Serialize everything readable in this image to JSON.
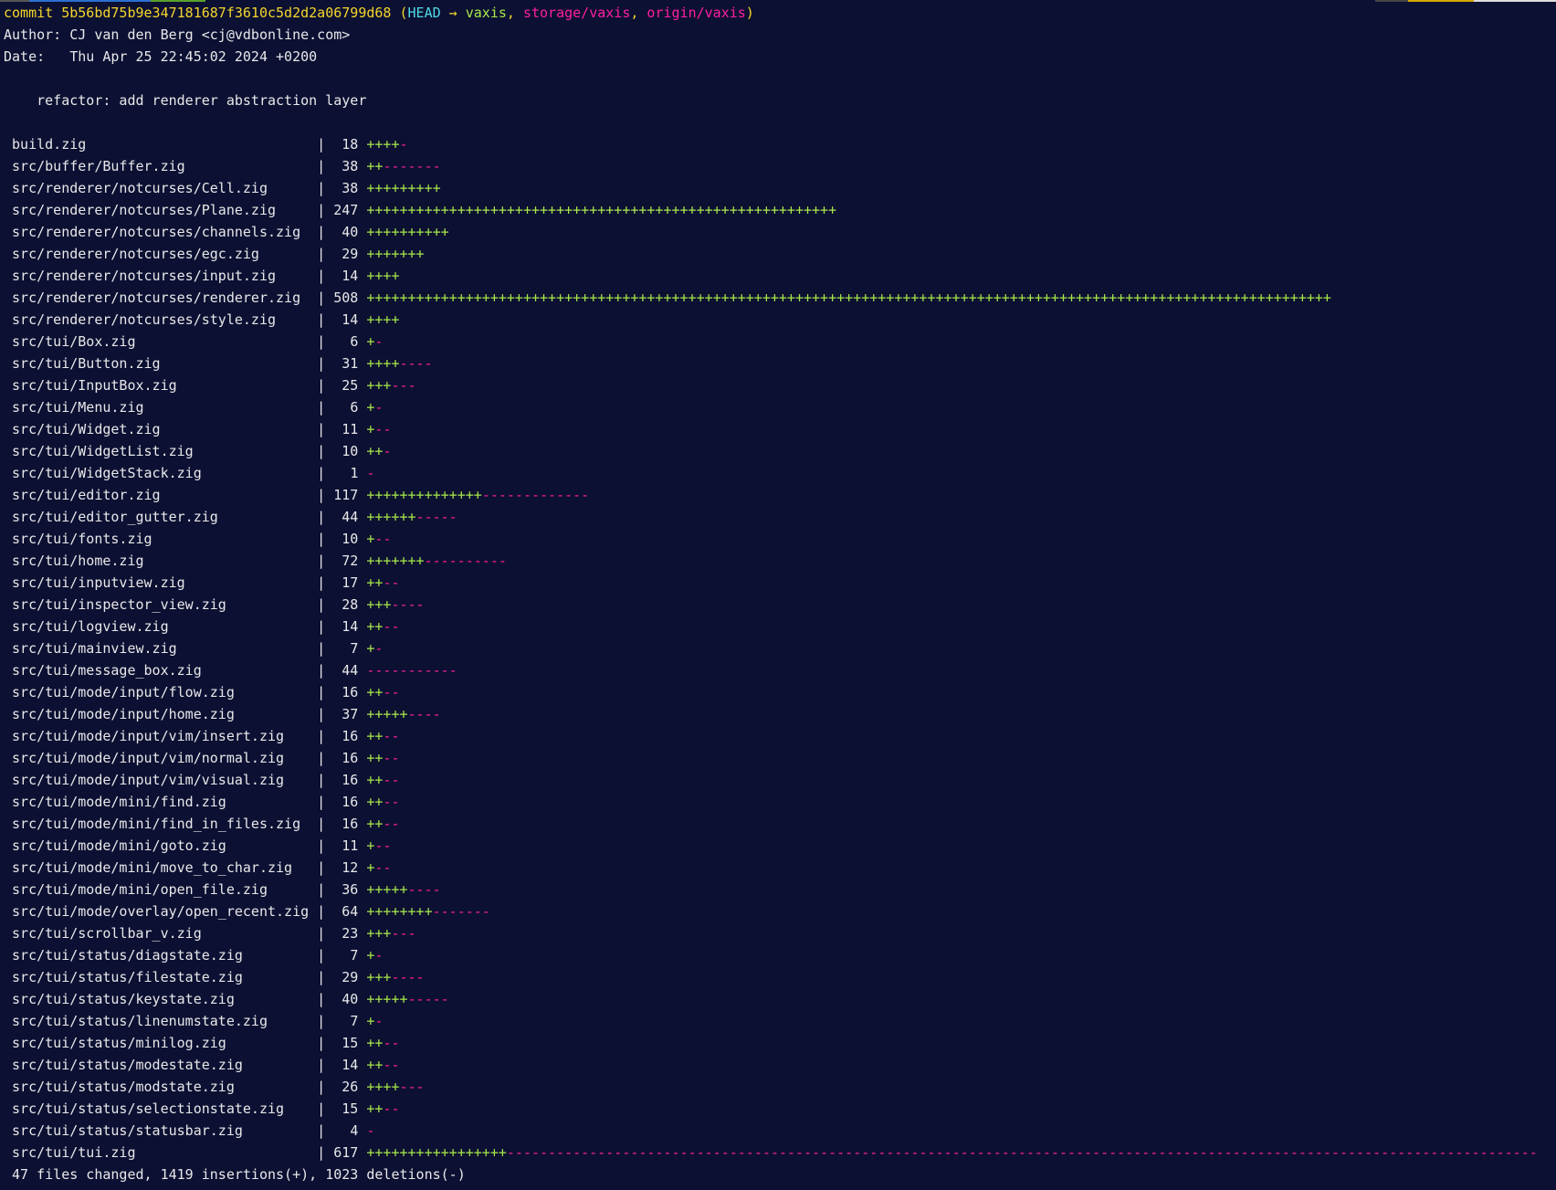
{
  "colors": {
    "background": "#0c1032",
    "text": "#e8e8ea",
    "commit": "#f4d62c",
    "head": "#4fd8e6",
    "branch": "#a8e84a",
    "remote": "#ff1fa2",
    "insertions": "#a8e84a",
    "deletions": "#ff1fa2"
  },
  "commit": {
    "label": "commit",
    "hash": "5b56bd75b9e347181687f3610c5d2d2a06799d68",
    "head": "HEAD",
    "arrow": "→",
    "branch": "vaxis",
    "refs": [
      "storage/vaxis",
      "origin/vaxis"
    ],
    "author_label": "Author:",
    "author": "CJ van den Berg <cj@vdbonline.com>",
    "date_label": "Date:",
    "date": "Thu Apr 25 22:45:02 2024 +0200",
    "message": "refactor: add renderer abstraction layer"
  },
  "files": [
    {
      "name": "build.zig",
      "changes": 18,
      "plus": 4,
      "minus": 1
    },
    {
      "name": "src/buffer/Buffer.zig",
      "changes": 38,
      "plus": 2,
      "minus": 7
    },
    {
      "name": "src/renderer/notcurses/Cell.zig",
      "changes": 38,
      "plus": 9,
      "minus": 0
    },
    {
      "name": "src/renderer/notcurses/Plane.zig",
      "changes": 247,
      "plus": 57,
      "minus": 0
    },
    {
      "name": "src/renderer/notcurses/channels.zig",
      "changes": 40,
      "plus": 10,
      "minus": 0
    },
    {
      "name": "src/renderer/notcurses/egc.zig",
      "changes": 29,
      "plus": 7,
      "minus": 0
    },
    {
      "name": "src/renderer/notcurses/input.zig",
      "changes": 14,
      "plus": 4,
      "minus": 0
    },
    {
      "name": "src/renderer/notcurses/renderer.zig",
      "changes": 508,
      "plus": 117,
      "minus": 0
    },
    {
      "name": "src/renderer/notcurses/style.zig",
      "changes": 14,
      "plus": 4,
      "minus": 0
    },
    {
      "name": "src/tui/Box.zig",
      "changes": 6,
      "plus": 1,
      "minus": 1
    },
    {
      "name": "src/tui/Button.zig",
      "changes": 31,
      "plus": 4,
      "minus": 4
    },
    {
      "name": "src/tui/InputBox.zig",
      "changes": 25,
      "plus": 3,
      "minus": 3
    },
    {
      "name": "src/tui/Menu.zig",
      "changes": 6,
      "plus": 1,
      "minus": 1
    },
    {
      "name": "src/tui/Widget.zig",
      "changes": 11,
      "plus": 1,
      "minus": 2
    },
    {
      "name": "src/tui/WidgetList.zig",
      "changes": 10,
      "plus": 2,
      "minus": 1
    },
    {
      "name": "src/tui/WidgetStack.zig",
      "changes": 1,
      "plus": 0,
      "minus": 1
    },
    {
      "name": "src/tui/editor.zig",
      "changes": 117,
      "plus": 14,
      "minus": 13
    },
    {
      "name": "src/tui/editor_gutter.zig",
      "changes": 44,
      "plus": 6,
      "minus": 5
    },
    {
      "name": "src/tui/fonts.zig",
      "changes": 10,
      "plus": 1,
      "minus": 2
    },
    {
      "name": "src/tui/home.zig",
      "changes": 72,
      "plus": 7,
      "minus": 10
    },
    {
      "name": "src/tui/inputview.zig",
      "changes": 17,
      "plus": 2,
      "minus": 2
    },
    {
      "name": "src/tui/inspector_view.zig",
      "changes": 28,
      "plus": 3,
      "minus": 4
    },
    {
      "name": "src/tui/logview.zig",
      "changes": 14,
      "plus": 2,
      "minus": 2
    },
    {
      "name": "src/tui/mainview.zig",
      "changes": 7,
      "plus": 1,
      "minus": 1
    },
    {
      "name": "src/tui/message_box.zig",
      "changes": 44,
      "plus": 0,
      "minus": 11
    },
    {
      "name": "src/tui/mode/input/flow.zig",
      "changes": 16,
      "plus": 2,
      "minus": 2
    },
    {
      "name": "src/tui/mode/input/home.zig",
      "changes": 37,
      "plus": 5,
      "minus": 4
    },
    {
      "name": "src/tui/mode/input/vim/insert.zig",
      "changes": 16,
      "plus": 2,
      "minus": 2
    },
    {
      "name": "src/tui/mode/input/vim/normal.zig",
      "changes": 16,
      "plus": 2,
      "minus": 2
    },
    {
      "name": "src/tui/mode/input/vim/visual.zig",
      "changes": 16,
      "plus": 2,
      "minus": 2
    },
    {
      "name": "src/tui/mode/mini/find.zig",
      "changes": 16,
      "plus": 2,
      "minus": 2
    },
    {
      "name": "src/tui/mode/mini/find_in_files.zig",
      "changes": 16,
      "plus": 2,
      "minus": 2
    },
    {
      "name": "src/tui/mode/mini/goto.zig",
      "changes": 11,
      "plus": 1,
      "minus": 2
    },
    {
      "name": "src/tui/mode/mini/move_to_char.zig",
      "changes": 12,
      "plus": 1,
      "minus": 2
    },
    {
      "name": "src/tui/mode/mini/open_file.zig",
      "changes": 36,
      "plus": 5,
      "minus": 4
    },
    {
      "name": "src/tui/mode/overlay/open_recent.zig",
      "changes": 64,
      "plus": 8,
      "minus": 7
    },
    {
      "name": "src/tui/scrollbar_v.zig",
      "changes": 23,
      "plus": 3,
      "minus": 3
    },
    {
      "name": "src/tui/status/diagstate.zig",
      "changes": 7,
      "plus": 1,
      "minus": 1
    },
    {
      "name": "src/tui/status/filestate.zig",
      "changes": 29,
      "plus": 3,
      "minus": 4
    },
    {
      "name": "src/tui/status/keystate.zig",
      "changes": 40,
      "plus": 5,
      "minus": 5
    },
    {
      "name": "src/tui/status/linenumstate.zig",
      "changes": 7,
      "plus": 1,
      "minus": 1
    },
    {
      "name": "src/tui/status/minilog.zig",
      "changes": 15,
      "plus": 2,
      "minus": 2
    },
    {
      "name": "src/tui/status/modestate.zig",
      "changes": 14,
      "plus": 2,
      "minus": 2
    },
    {
      "name": "src/tui/status/modstate.zig",
      "changes": 26,
      "plus": 4,
      "minus": 3
    },
    {
      "name": "src/tui/status/selectionstate.zig",
      "changes": 15,
      "plus": 2,
      "minus": 2
    },
    {
      "name": "src/tui/status/statusbar.zig",
      "changes": 4,
      "plus": 0,
      "minus": 1
    },
    {
      "name": "src/tui/tui.zig",
      "changes": 617,
      "plus": 17,
      "minus": 125
    }
  ],
  "summary": "47 files changed, 1419 insertions(+), 1023 deletions(-)"
}
